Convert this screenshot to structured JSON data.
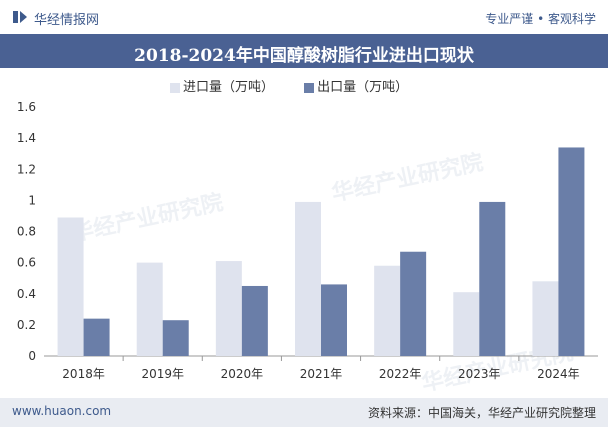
{
  "header": {
    "brand": "华经情报网",
    "slogan": "专业严谨 • 客观科学",
    "title": "2018-2024年中国醇酸树脂行业进出口现状"
  },
  "footer": {
    "site": "www.huaon.com",
    "source": "资料来源：中国海关，华经产业研究院整理"
  },
  "watermark": {
    "text": "华经产业研究院",
    "url": "www.huaon.com"
  },
  "colors": {
    "header_bg": "#4a6193",
    "import": "#dfe3ee",
    "export": "#6a7ea8"
  },
  "chart_data": {
    "type": "bar",
    "categories": [
      "2018年",
      "2019年",
      "2020年",
      "2021年",
      "2022年",
      "2023年",
      "2024年"
    ],
    "series": [
      {
        "name": "进口量（万吨）",
        "values": [
          0.89,
          0.6,
          0.61,
          0.99,
          0.58,
          0.41,
          0.48
        ]
      },
      {
        "name": "出口量（万吨）",
        "values": [
          0.24,
          0.23,
          0.45,
          0.46,
          0.67,
          0.99,
          1.34
        ]
      }
    ],
    "yticks": [
      "0",
      "0.2",
      "0.4",
      "0.6",
      "0.8",
      "1",
      "1.2",
      "1.4",
      "1.6"
    ],
    "ylim": [
      0,
      1.6
    ],
    "legend_position": "top-center",
    "grid": false
  }
}
